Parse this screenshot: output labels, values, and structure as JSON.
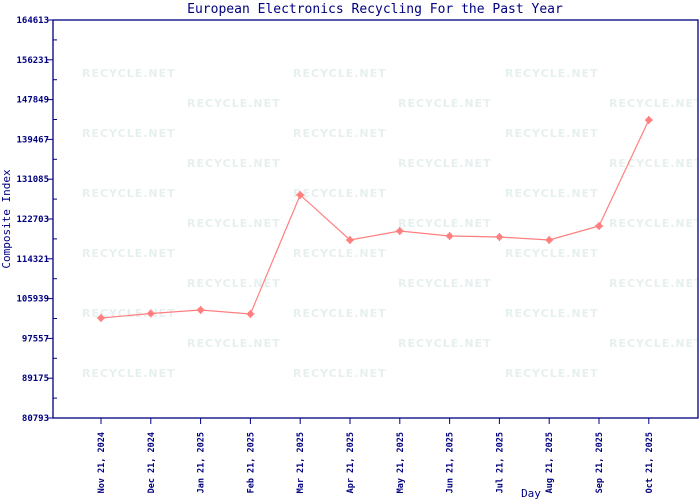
{
  "chart_data": {
    "type": "line",
    "title": "European Electronics Recycling For the Past Year",
    "xlabel": "Day",
    "ylabel": "Composite Index",
    "ylim": [
      80793,
      164613
    ],
    "y_ticks": [
      "80793",
      "89175",
      "97557",
      "105939",
      "114321",
      "122703",
      "131085",
      "139467",
      "147849",
      "156231",
      "164613"
    ],
    "categories": [
      "Nov 21, 2024",
      "Dec 21, 2024",
      "Jan 21, 2025",
      "Feb 21, 2025",
      "Mar 21, 2025",
      "Apr 21, 2025",
      "May 21, 2025",
      "Jun 21, 2025",
      "Jul 21, 2025",
      "Aug 21, 2025",
      "Sep 21, 2025",
      "Oct 21, 2025"
    ],
    "values": [
      101850,
      102800,
      103540,
      102700,
      127760,
      118280,
      120180,
      119120,
      118910,
      118280,
      121230,
      143550
    ],
    "grid": false,
    "colors": {
      "line": "#ff7f7f",
      "axis": "#000080",
      "watermark": "#e6f0ee"
    }
  },
  "watermark": "RECYCLE.NET"
}
